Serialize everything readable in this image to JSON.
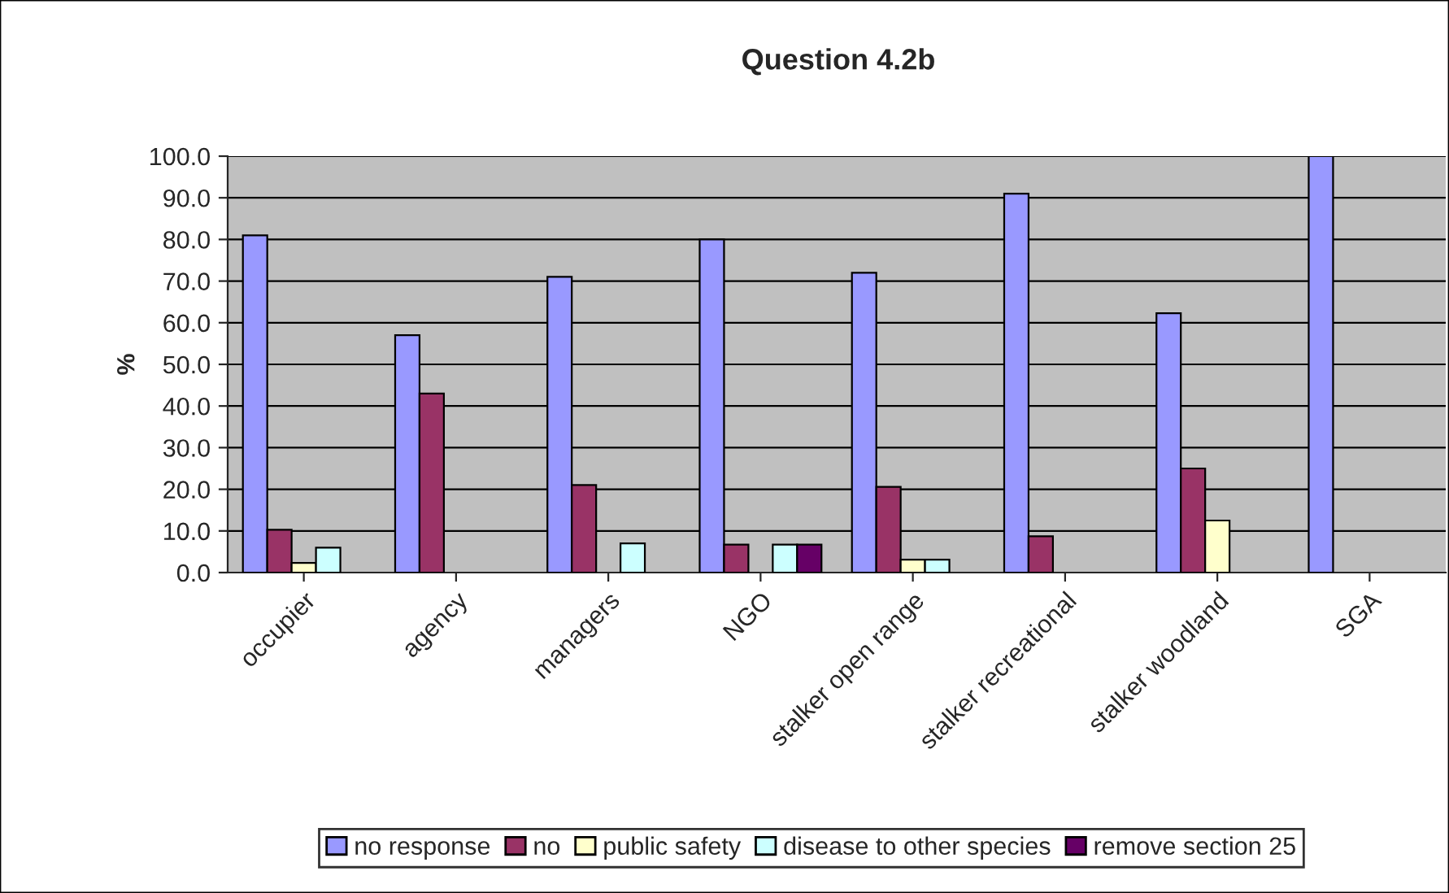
{
  "chart_data": {
    "type": "bar",
    "title": "Question 4.2b",
    "ylabel": "%",
    "categories": [
      "occupier",
      "agency",
      "managers",
      "NGO",
      "stalker open range",
      "stalker recreational",
      "stalker woodland",
      "SGA"
    ],
    "series": [
      {
        "name": "no response",
        "color": "#9999ff",
        "values": [
          81,
          57,
          71,
          80,
          72,
          91,
          62.3,
          100
        ]
      },
      {
        "name": "no",
        "color": "#993366",
        "values": [
          10.3,
          43,
          21,
          6.7,
          20.6,
          8.7,
          25,
          null
        ]
      },
      {
        "name": "public safety",
        "color": "#ffffcc",
        "values": [
          2.3,
          null,
          null,
          null,
          3.1,
          null,
          12.5,
          null
        ]
      },
      {
        "name": "disease to other species",
        "color": "#ccffff",
        "values": [
          6,
          null,
          7,
          6.7,
          3.1,
          null,
          null,
          null
        ]
      },
      {
        "name": "remove section 25",
        "color": "#660066",
        "values": [
          null,
          null,
          null,
          6.7,
          null,
          null,
          null,
          null
        ]
      }
    ],
    "ylim": [
      0,
      100
    ],
    "yticks": [
      {
        "value": 0,
        "label": "0.0"
      },
      {
        "value": 10,
        "label": "10.0"
      },
      {
        "value": 20,
        "label": "20.0"
      },
      {
        "value": 30,
        "label": "30.0"
      },
      {
        "value": 40,
        "label": "40.0"
      },
      {
        "value": 50,
        "label": "50.0"
      },
      {
        "value": 60,
        "label": "60.0"
      },
      {
        "value": 70,
        "label": "70.0"
      },
      {
        "value": 80,
        "label": "80.0"
      },
      {
        "value": 90,
        "label": "90.0"
      },
      {
        "value": 100,
        "label": "100.0"
      }
    ],
    "grid": "y",
    "legend": "bottom"
  }
}
